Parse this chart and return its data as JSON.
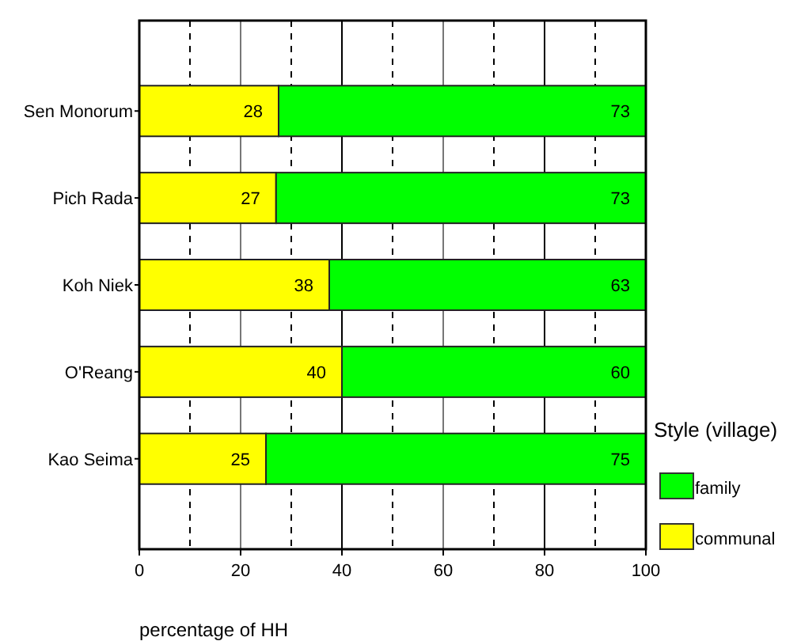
{
  "chart_data": {
    "type": "bar",
    "orientation": "horizontal",
    "stacked": true,
    "xlabel": "percentage of HH",
    "legend_title": "Style (village)",
    "legend": "bottom right",
    "grid": "x",
    "categories": [
      "Sen Monorum",
      "Pich Rada",
      "Koh Niek",
      "O'Reang",
      "Kao Seima"
    ],
    "series": [
      {
        "name": "communal",
        "color": "#ffff00",
        "values": [
          27.5,
          27,
          37.5,
          40,
          25
        ],
        "value_labels": [
          "28",
          "27",
          "38",
          "40",
          "25"
        ]
      },
      {
        "name": "family",
        "color": "#00ff00",
        "values": [
          72.5,
          73,
          62.5,
          60,
          75
        ],
        "value_labels": [
          "73",
          "73",
          "63",
          "60",
          "75"
        ]
      }
    ],
    "xlim": [
      0,
      100
    ],
    "xticks": [
      0,
      {
        "value": 10,
        "label": null
      },
      20,
      {
        "value": 30,
        "label": null
      },
      40,
      {
        "value": 50,
        "label": null
      },
      60,
      {
        "value": 70,
        "label": null
      },
      80,
      {
        "value": 90,
        "label": null
      },
      100
    ]
  }
}
